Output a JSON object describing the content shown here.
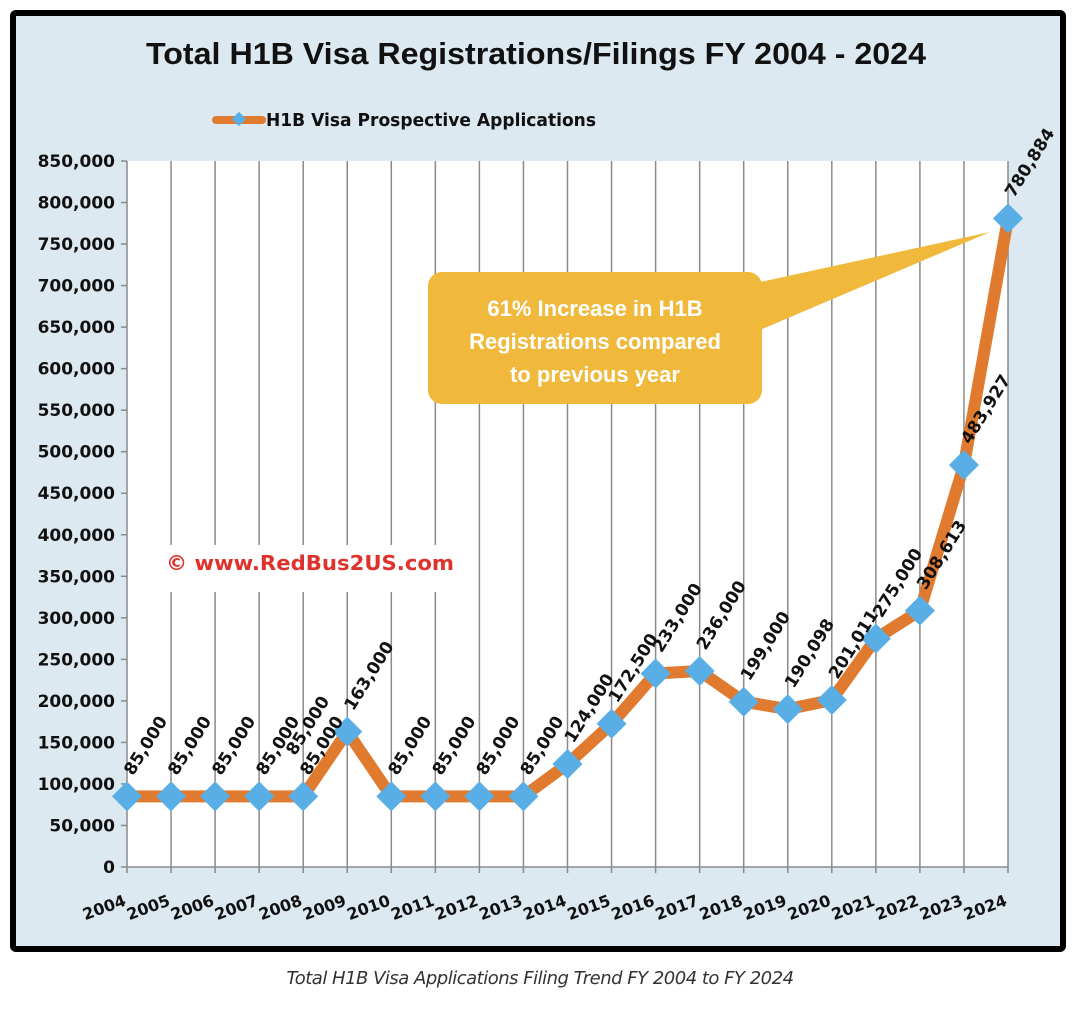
{
  "chart_data": {
    "type": "line",
    "title": "Total H1B Visa Registrations/Filings FY 2004 - 2024",
    "xlabel": "",
    "ylabel": "",
    "categories": [
      "2004",
      "2005",
      "2006",
      "2007",
      "2008",
      "2009",
      "2010",
      "2011",
      "2012",
      "2013",
      "2014",
      "2015",
      "2016",
      "2017",
      "2018",
      "2019",
      "2020",
      "2021",
      "2022",
      "2023",
      "2024"
    ],
    "series": [
      {
        "name": "H1B Visa Prospective Applications",
        "values": [
          85000,
          85000,
          85000,
          85000,
          85000,
          163000,
          85000,
          85000,
          85000,
          85000,
          124000,
          172500,
          233000,
          236000,
          199000,
          190098,
          201011,
          275000,
          308613,
          483927,
          780884
        ],
        "data_labels": [
          "85,000",
          "85,000",
          "85,000",
          "85,000",
          "85,000",
          "163,000",
          "85,000",
          "85,000",
          "85,000",
          "85,000",
          "124,000",
          "172,500",
          "233,000",
          "236,000",
          "199,000",
          "190,098",
          "201,011",
          "275,000",
          "308,613",
          "483,927",
          "780,884"
        ],
        "line_color": "#e07a2e",
        "marker_color": "#5aaee6",
        "marker": "diamond"
      }
    ],
    "extra_label": "85,000",
    "ylim": [
      0,
      850000
    ],
    "yticks": [
      0,
      50000,
      100000,
      150000,
      200000,
      250000,
      300000,
      350000,
      400000,
      450000,
      500000,
      550000,
      600000,
      650000,
      700000,
      750000,
      800000,
      850000
    ],
    "ytick_labels": [
      "0",
      "50,000",
      "100,000",
      "150,000",
      "200,000",
      "250,000",
      "300,000",
      "350,000",
      "400,000",
      "450,000",
      "500,000",
      "550,000",
      "600,000",
      "650,000",
      "700,000",
      "750,000",
      "800,000",
      "850,000"
    ],
    "grid": "vertical",
    "legend": "top-left",
    "annotation": {
      "lines": [
        "61% Increase in H1B",
        "Registrations compared",
        "to previous year"
      ],
      "points_to": "2024",
      "color": "#f0b93c"
    },
    "watermark": "© www.RedBus2US.com",
    "watermark_color": "#e0322c"
  },
  "caption": "Total H1B Visa Applications Filing Trend FY 2004 to FY 2024"
}
